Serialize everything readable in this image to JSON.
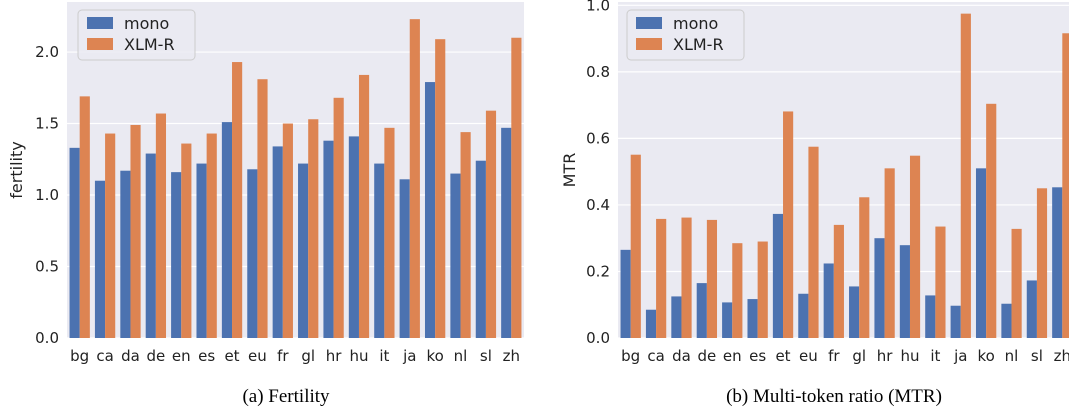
{
  "chart_data": [
    {
      "type": "bar",
      "caption": "(a) Fertility",
      "ylabel": "fertility",
      "ylim": [
        0,
        2.35
      ],
      "yticks": [
        "0.0",
        "0.5",
        "1.0",
        "1.5",
        "2.0"
      ],
      "grid": true,
      "legend": "top-left",
      "categories": [
        "bg",
        "ca",
        "da",
        "de",
        "en",
        "es",
        "et",
        "eu",
        "fr",
        "gl",
        "hr",
        "hu",
        "it",
        "ja",
        "ko",
        "nl",
        "sl",
        "zh"
      ],
      "series": [
        {
          "name": "mono",
          "color": "#4c72b0",
          "values": [
            1.33,
            1.1,
            1.17,
            1.29,
            1.16,
            1.22,
            1.51,
            1.18,
            1.34,
            1.22,
            1.38,
            1.41,
            1.22,
            1.11,
            1.79,
            1.15,
            1.24,
            1.47
          ]
        },
        {
          "name": "XLM-R",
          "color": "#dd8452",
          "values": [
            1.69,
            1.43,
            1.49,
            1.57,
            1.36,
            1.43,
            1.93,
            1.81,
            1.5,
            1.53,
            1.68,
            1.84,
            1.47,
            2.23,
            2.09,
            1.44,
            1.59,
            2.1
          ]
        }
      ]
    },
    {
      "type": "bar",
      "caption": "(b) Multi-token ratio (MTR)",
      "ylabel": "MTR",
      "ylim": [
        0,
        1.01
      ],
      "yticks": [
        "0.0",
        "0.2",
        "0.4",
        "0.6",
        "0.8",
        "1.0"
      ],
      "grid": true,
      "legend": "top-left",
      "categories": [
        "bg",
        "ca",
        "da",
        "de",
        "en",
        "es",
        "et",
        "eu",
        "fr",
        "gl",
        "hr",
        "hu",
        "it",
        "ja",
        "ko",
        "nl",
        "sl",
        "zh"
      ],
      "series": [
        {
          "name": "mono",
          "color": "#4c72b0",
          "values": [
            0.265,
            0.085,
            0.125,
            0.165,
            0.107,
            0.117,
            0.373,
            0.133,
            0.224,
            0.155,
            0.3,
            0.279,
            0.128,
            0.097,
            0.51,
            0.103,
            0.173,
            0.453
          ]
        },
        {
          "name": "XLM-R",
          "color": "#dd8452",
          "values": [
            0.551,
            0.358,
            0.362,
            0.355,
            0.285,
            0.29,
            0.681,
            0.575,
            0.34,
            0.423,
            0.51,
            0.548,
            0.335,
            0.975,
            0.704,
            0.328,
            0.45,
            0.916
          ]
        }
      ]
    }
  ]
}
